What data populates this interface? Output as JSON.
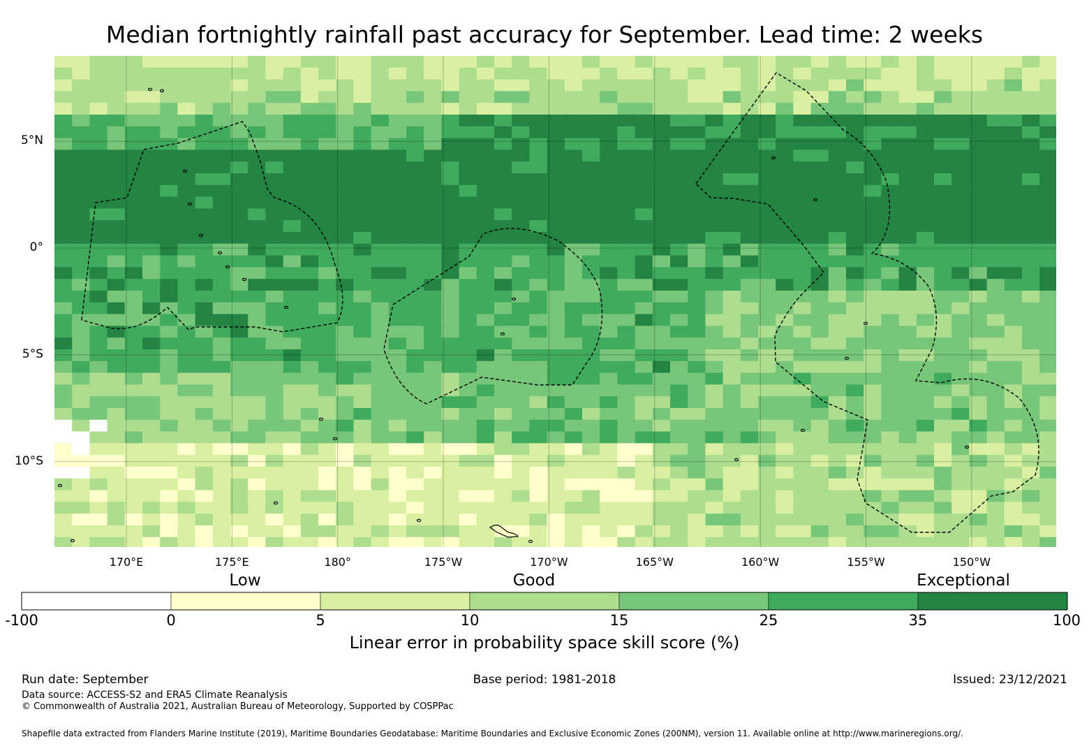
{
  "title": "Median fortnightly rainfall past accuracy for September. Lead time: 2 weeks",
  "map": {
    "lat_range": [
      -14,
      9
    ],
    "lon_range": [
      166.6,
      214.0
    ],
    "grid_step_deg": 0.833,
    "lat_labels": [
      "5°N",
      "0°",
      "5°S",
      "10°S"
    ],
    "lat_values": [
      5,
      0,
      -5,
      -10
    ],
    "lon_labels": [
      "170°E",
      "175°E",
      "180°",
      "175°W",
      "170°W",
      "165°W",
      "160°W",
      "155°W",
      "150°W"
    ],
    "lon_values": [
      170,
      175,
      180,
      185,
      190,
      195,
      200,
      205,
      210
    ]
  },
  "legend": {
    "category_labels": [
      "Low",
      "Good",
      "Exceptional"
    ],
    "boundaries": [
      "-100",
      "0",
      "5",
      "10",
      "15",
      "25",
      "35",
      "100"
    ],
    "colors": [
      "#ffffff",
      "#ffffcc",
      "#d9f0a3",
      "#addd8e",
      "#78c679",
      "#41ab5d",
      "#238443"
    ],
    "axis_label": "Linear error in probability space skill score (%)"
  },
  "footer": {
    "run_date": "Run date: September",
    "base_period": "Base period: 1981-2018",
    "issued": "Issued: 23/12/2021",
    "data_source": "Data source: ACCESS-S2 and ERA5 Climate Reanalysis",
    "copyright": "© Commonwealth of Australia 2021, Australian Bureau of Meteorology, Supported by COSPPac",
    "shapefile": "Shapefile data extracted from Flanders Marine Institute (2019), Maritime Boundaries Geodatabase: Maritime Boundaries and Exclusive Economic Zones (200NM), version 11. Available online at http://www.marineregions.org/."
  }
}
